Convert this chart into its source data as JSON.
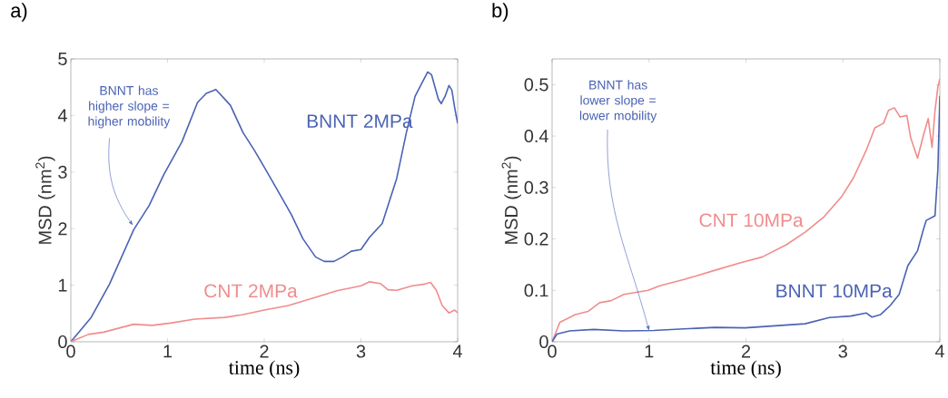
{
  "chart_data": [
    {
      "type": "line",
      "title": "a)",
      "xlabel": "time (ns)",
      "ylabel": "MSD (nm$^{2}$)",
      "xlim": [
        0,
        4
      ],
      "ylim": [
        0,
        5
      ],
      "xticks": [
        0,
        1,
        2,
        3,
        4
      ],
      "yticks": [
        0,
        1,
        2,
        3,
        4,
        5
      ],
      "grid": false,
      "legend": false,
      "annotations": [
        {
          "text": "BNNT has higher slope = higher mobility",
          "x": 0.64,
          "y": 2.06
        }
      ],
      "series": [
        {
          "name": "BNNT 2MPa",
          "color": "#4a62b5",
          "x": [
            0,
            0.21,
            0.4,
            0.65,
            0.81,
            0.96,
            1.15,
            1.31,
            1.4,
            1.5,
            1.65,
            1.78,
            1.9,
            2.03,
            2.12,
            2.28,
            2.4,
            2.53,
            2.62,
            2.72,
            2.81,
            2.9,
            3.0,
            3.09,
            3.22,
            3.31,
            3.37,
            3.47,
            3.56,
            3.69,
            3.73,
            3.8,
            3.83,
            3.87,
            3.91,
            3.94,
            3.97,
            4.0
          ],
          "values": [
            0,
            0.43,
            1.02,
            1.98,
            2.41,
            2.95,
            3.54,
            4.23,
            4.39,
            4.46,
            4.18,
            3.7,
            3.38,
            3.0,
            2.73,
            2.25,
            1.82,
            1.5,
            1.42,
            1.42,
            1.5,
            1.6,
            1.63,
            1.85,
            2.09,
            2.57,
            2.89,
            3.7,
            4.34,
            4.77,
            4.72,
            4.29,
            4.21,
            4.34,
            4.53,
            4.45,
            4.13,
            3.86
          ]
        },
        {
          "name": "CNT 2MPa",
          "color": "#f08c8c",
          "x": [
            0,
            0.18,
            0.34,
            0.65,
            0.84,
            1.03,
            1.28,
            1.59,
            1.78,
            2.0,
            2.25,
            2.56,
            2.75,
            3.0,
            3.09,
            3.2,
            3.28,
            3.37,
            3.53,
            3.66,
            3.72,
            3.78,
            3.84,
            3.91,
            3.97,
            4.0
          ],
          "values": [
            0,
            0.13,
            0.17,
            0.31,
            0.29,
            0.33,
            0.4,
            0.43,
            0.48,
            0.56,
            0.64,
            0.8,
            0.9,
            0.99,
            1.06,
            1.03,
            0.92,
            0.91,
            0.99,
            1.02,
            1.05,
            0.91,
            0.64,
            0.51,
            0.56,
            0.51
          ]
        }
      ]
    },
    {
      "type": "line",
      "title": "b)",
      "xlabel": "time (ns)",
      "ylabel": "MSD (nm$^{2}$)",
      "xlim": [
        0,
        4
      ],
      "ylim": [
        0,
        0.55
      ],
      "xticks": [
        0,
        1,
        2,
        3,
        4
      ],
      "yticks": [
        0,
        0.1,
        0.2,
        0.3,
        0.4,
        0.5
      ],
      "grid": false,
      "legend": false,
      "annotations": [
        {
          "text": "BNNT has lower slope = lower mobility",
          "x": 1.0,
          "y": 0.022
        }
      ],
      "series": [
        {
          "name": "CNT 10MPa",
          "color": "#f08c8c",
          "x": [
            0,
            0.08,
            0.24,
            0.37,
            0.49,
            0.61,
            0.74,
            0.99,
            1.11,
            1.36,
            1.68,
            1.93,
            2.17,
            2.42,
            2.61,
            2.8,
            2.99,
            3.11,
            3.24,
            3.33,
            3.42,
            3.47,
            3.53,
            3.59,
            3.66,
            3.7,
            3.77,
            3.83,
            3.88,
            3.92,
            3.95,
            3.98,
            4.0
          ],
          "values": [
            0,
            0.038,
            0.053,
            0.059,
            0.076,
            0.08,
            0.092,
            0.1,
            0.109,
            0.121,
            0.139,
            0.153,
            0.165,
            0.189,
            0.213,
            0.242,
            0.283,
            0.319,
            0.372,
            0.416,
            0.425,
            0.45,
            0.455,
            0.437,
            0.44,
            0.396,
            0.357,
            0.401,
            0.434,
            0.378,
            0.449,
            0.496,
            0.511
          ]
        },
        {
          "name": "BNNT 10MPa",
          "color": "#4a62b5",
          "x": [
            0,
            0.05,
            0.18,
            0.43,
            0.74,
            1.05,
            1.36,
            1.68,
            1.99,
            2.3,
            2.61,
            2.86,
            3.08,
            3.24,
            3.3,
            3.39,
            3.49,
            3.58,
            3.67,
            3.77,
            3.83,
            3.86,
            3.95,
            3.98,
            4.0
          ],
          "values": [
            0,
            0.015,
            0.021,
            0.024,
            0.021,
            0.022,
            0.025,
            0.028,
            0.027,
            0.031,
            0.035,
            0.047,
            0.05,
            0.056,
            0.048,
            0.053,
            0.071,
            0.092,
            0.148,
            0.177,
            0.218,
            0.236,
            0.245,
            0.336,
            0.478
          ]
        }
      ]
    }
  ]
}
